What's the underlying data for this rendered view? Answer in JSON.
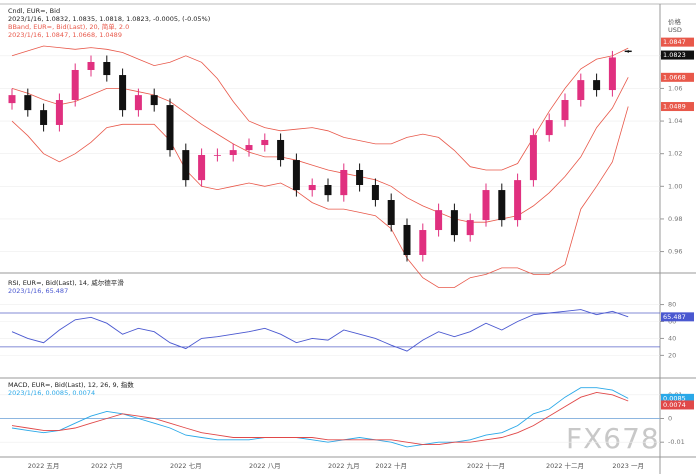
{
  "chart_data": [
    {
      "type": "candlestick",
      "title": "Cndl, EUR=, Bid",
      "subtitle": "2023/1/16, 1.0832, 1.0835, 1.0818, 1.0823, -0.0005, (-0.05%)",
      "categories": [
        null,
        null,
        "2022 五月",
        null,
        null,
        null,
        "2022 六月",
        null,
        null,
        null,
        null,
        "2022 七月",
        null,
        null,
        null,
        null,
        "2022 八月",
        null,
        null,
        null,
        null,
        "2022 九月",
        null,
        null,
        "2022 十月",
        null,
        null,
        null,
        null,
        null,
        "2022 十一月",
        null,
        null,
        null,
        null,
        "2022 十二月",
        null,
        null,
        null,
        "2023 一月"
      ],
      "open": [
        1.051,
        1.0559,
        1.0467,
        1.0376,
        1.0529,
        1.0713,
        1.0762,
        1.0682,
        1.0467,
        1.0559,
        1.0498,
        1.0222,
        1.0038,
        1.0192,
        1.0192,
        1.0222,
        1.0253,
        1.0284,
        1.0161,
        0.9977,
        1.0008,
        0.9946,
        1.01,
        1.0008,
        0.9916,
        0.9763,
        0.9579,
        0.9732,
        0.9854,
        0.9701,
        0.9793,
        0.9977,
        0.9793,
        1.0038,
        1.0314,
        1.0406,
        1.0529,
        1.0651,
        1.059,
        1.0832
      ],
      "high": [
        1.0599,
        1.0599,
        1.0507,
        1.0569,
        1.0753,
        1.0802,
        1.0802,
        1.0722,
        1.0599,
        1.0599,
        1.0538,
        1.0262,
        1.0232,
        1.0232,
        1.0262,
        1.0293,
        1.0324,
        1.0324,
        1.0201,
        1.0048,
        1.0048,
        1.014,
        1.014,
        1.0048,
        0.9956,
        0.9803,
        0.9772,
        0.9894,
        0.9894,
        0.9833,
        1.0017,
        1.0017,
        1.0078,
        1.0354,
        1.0446,
        1.0569,
        1.0691,
        1.0691,
        1.083,
        1.0835
      ],
      "low": [
        1.047,
        1.0427,
        1.0336,
        1.0336,
        1.0489,
        1.0673,
        1.0642,
        1.0427,
        1.0427,
        1.0458,
        1.0182,
        0.9998,
        0.9998,
        1.0152,
        1.0152,
        1.0182,
        1.0213,
        1.0121,
        0.9937,
        0.9937,
        0.9906,
        0.9906,
        0.9968,
        0.9876,
        0.9723,
        0.9539,
        0.9539,
        0.9692,
        0.9661,
        0.9661,
        0.9753,
        0.9753,
        0.9753,
        0.9998,
        1.0274,
        1.0366,
        1.0489,
        1.055,
        1.055,
        1.0818
      ],
      "close": [
        1.0559,
        1.0467,
        1.0376,
        1.0529,
        1.0713,
        1.0762,
        1.0682,
        1.0467,
        1.0559,
        1.0498,
        1.0222,
        1.0038,
        1.0192,
        1.0192,
        1.0222,
        1.0253,
        1.0284,
        1.0161,
        0.9977,
        1.0008,
        0.9946,
        1.01,
        1.0008,
        0.9916,
        0.9763,
        0.9579,
        0.9732,
        0.9854,
        0.9701,
        0.9793,
        0.9977,
        0.9793,
        1.0038,
        1.0314,
        1.0406,
        1.0529,
        1.0651,
        1.059,
        1.079,
        1.0823
      ],
      "up_color": "#e0307f",
      "down_color": "#111111",
      "bands": {
        "title": "BBand, EUR=, Bid(Last), 20, 简单, 2.0",
        "subtitle": "2023/1/16, 1.0847, 1.0668, 1.0489",
        "color": "#e8584a",
        "upper": [
          1.08,
          1.083,
          1.086,
          1.085,
          1.084,
          1.085,
          1.084,
          1.082,
          1.078,
          1.074,
          1.076,
          1.08,
          1.076,
          1.066,
          1.052,
          1.04,
          1.036,
          1.034,
          1.035,
          1.036,
          1.034,
          1.03,
          1.028,
          1.026,
          1.026,
          1.03,
          1.032,
          1.03,
          1.022,
          1.012,
          1.01,
          1.01,
          1.014,
          1.03,
          1.046,
          1.06,
          1.072,
          1.078,
          1.08,
          1.0847
        ],
        "middle": [
          1.06,
          1.057,
          1.053,
          1.05,
          1.052,
          1.056,
          1.06,
          1.06,
          1.058,
          1.056,
          1.052,
          1.045,
          1.038,
          1.032,
          1.026,
          1.021,
          1.018,
          1.018,
          1.016,
          1.013,
          1.01,
          1.008,
          1.006,
          1.004,
          1.0,
          0.993,
          0.988,
          0.984,
          0.98,
          0.978,
          0.978,
          0.98,
          0.982,
          0.988,
          0.996,
          1.006,
          1.018,
          1.036,
          1.048,
          1.0668
        ],
        "lower": [
          1.04,
          1.031,
          1.02,
          1.015,
          1.02,
          1.027,
          1.036,
          1.038,
          1.038,
          1.038,
          1.028,
          1.01,
          1.0,
          0.998,
          1.0,
          1.002,
          1.0,
          1.002,
          0.997,
          0.99,
          0.986,
          0.986,
          0.984,
          0.982,
          0.974,
          0.956,
          0.944,
          0.938,
          0.938,
          0.944,
          0.946,
          0.95,
          0.95,
          0.946,
          0.946,
          0.952,
          0.986,
          1.0,
          1.015,
          1.0489
        ]
      },
      "ylim": [
        0.9487,
        1.1093
      ],
      "yticks": [
        0.96,
        0.98,
        {
          "value": 1,
          "label": "1.00"
        },
        1.02,
        1.04,
        1.06,
        1.08
      ],
      "y_label": "价格",
      "y_unit": "USD",
      "grid": true
    },
    {
      "type": "line",
      "title": "RSI, EUR=, Bid(Last), 14, 威尔德平滑",
      "subtitle": "2023/1/16, 65.487",
      "series": [
        {
          "color": "#4a58d0",
          "values": [
            48,
            40,
            35,
            50,
            62,
            65,
            58,
            45,
            52,
            48,
            35,
            28,
            40,
            42,
            45,
            48,
            52,
            45,
            35,
            40,
            38,
            50,
            45,
            40,
            32,
            25,
            38,
            48,
            42,
            48,
            58,
            50,
            60,
            68,
            70,
            72,
            74,
            68,
            72,
            65.487
          ]
        }
      ],
      "levels": [
        70,
        30
      ],
      "level_color": "#5a64c8",
      "ylim": [
        -2,
        109
      ],
      "yticks": [
        20,
        40,
        60,
        80
      ],
      "grid": true
    },
    {
      "type": "line",
      "title": "MACD, EUR=, Bid(Last), 12, 26, 9, 指数",
      "subtitle": "2023/1/16, 0.0085, 0.0074",
      "series": [
        {
          "color": "#2aa8e8",
          "values": [
            -0.004,
            -0.005,
            -0.006,
            -0.005,
            -0.002,
            0.001,
            0.003,
            0.002,
            0.0,
            -0.002,
            -0.004,
            -0.007,
            -0.008,
            -0.009,
            -0.009,
            -0.009,
            -0.008,
            -0.008,
            -0.008,
            -0.009,
            -0.01,
            -0.009,
            -0.008,
            -0.009,
            -0.01,
            -0.012,
            -0.011,
            -0.01,
            -0.01,
            -0.009,
            -0.007,
            -0.006,
            -0.003,
            0.002,
            0.004,
            0.009,
            0.013,
            0.013,
            0.012,
            0.0085
          ]
        },
        {
          "color": "#e04848",
          "values": [
            -0.003,
            -0.004,
            -0.005,
            -0.005,
            -0.004,
            -0.002,
            0.0,
            0.002,
            0.001,
            0.0,
            -0.002,
            -0.004,
            -0.006,
            -0.007,
            -0.008,
            -0.008,
            -0.008,
            -0.008,
            -0.008,
            -0.008,
            -0.009,
            -0.009,
            -0.009,
            -0.009,
            -0.009,
            -0.01,
            -0.011,
            -0.011,
            -0.01,
            -0.01,
            -0.009,
            -0.008,
            -0.006,
            -0.003,
            0.001,
            0.005,
            0.009,
            0.011,
            0.01,
            0.0074
          ]
        }
      ],
      "levels": [
        0
      ],
      "level_color": "#6aa0d8",
      "ylim": [
        -0.0154,
        0.0154
      ],
      "yticks": [
        -0.01,
        0,
        0.01
      ],
      "grid": true
    }
  ],
  "watermark": "FX678"
}
